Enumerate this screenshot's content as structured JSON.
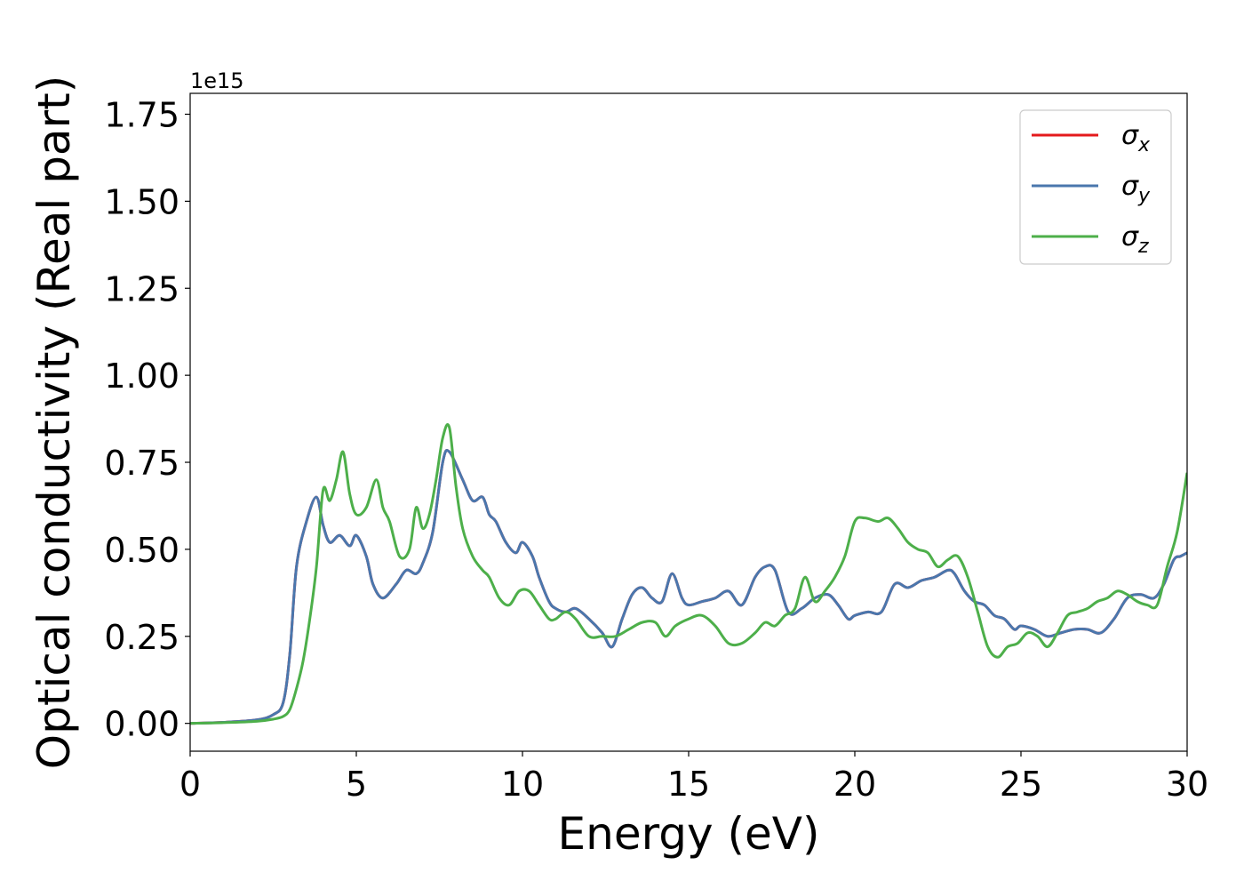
{
  "chart_data": {
    "type": "line",
    "title": "",
    "xlabel": "Energy (eV)",
    "ylabel": "Optical conductivity (Real part)",
    "y_offset_text": "1e15",
    "xlim": [
      0,
      30
    ],
    "ylim": [
      -0.08,
      1.81
    ],
    "x_ticks": [
      0,
      5,
      10,
      15,
      20,
      25,
      30
    ],
    "x_tick_labels": [
      "0",
      "5",
      "10",
      "15",
      "20",
      "25",
      "30"
    ],
    "y_ticks": [
      0.0,
      0.25,
      0.5,
      0.75,
      1.0,
      1.25,
      1.5,
      1.75
    ],
    "y_tick_labels": [
      "0.00",
      "0.25",
      "0.50",
      "0.75",
      "1.00",
      "1.25",
      "1.50",
      "1.75"
    ],
    "grid": false,
    "legend_position": "top-right",
    "series": [
      {
        "name": "σx",
        "label_base": "σ",
        "label_sub": "x",
        "color": "#e41a1c",
        "x": [
          0,
          1,
          2,
          2.5,
          2.8,
          3.0,
          3.2,
          3.5,
          3.8,
          4.0,
          4.2,
          4.5,
          4.8,
          5.0,
          5.3,
          5.5,
          5.8,
          6.2,
          6.5,
          6.8,
          7.0,
          7.3,
          7.6,
          7.8,
          8.2,
          8.5,
          8.8,
          9.0,
          9.2,
          9.5,
          9.8,
          10.0,
          10.3,
          10.5,
          10.8,
          11.0,
          11.3,
          11.6,
          12.0,
          12.4,
          12.7,
          13.0,
          13.3,
          13.6,
          13.9,
          14.2,
          14.5,
          14.8,
          15.0,
          15.4,
          15.8,
          16.2,
          16.6,
          17.0,
          17.3,
          17.6,
          18.0,
          18.4,
          18.8,
          19.2,
          19.5,
          19.8,
          20.0,
          20.4,
          20.8,
          21.2,
          21.6,
          22.0,
          22.4,
          22.8,
          23.0,
          23.3,
          23.6,
          23.9,
          24.2,
          24.5,
          24.8,
          25.0,
          25.4,
          25.8,
          26.2,
          26.6,
          27.0,
          27.4,
          27.8,
          28.2,
          28.6,
          29.0,
          29.3,
          29.6,
          29.8,
          30.0
        ],
        "y": [
          0.0,
          0.003,
          0.01,
          0.025,
          0.06,
          0.2,
          0.45,
          0.58,
          0.65,
          0.57,
          0.52,
          0.54,
          0.51,
          0.54,
          0.48,
          0.4,
          0.36,
          0.4,
          0.44,
          0.43,
          0.46,
          0.55,
          0.75,
          0.78,
          0.7,
          0.64,
          0.65,
          0.6,
          0.58,
          0.52,
          0.49,
          0.52,
          0.48,
          0.42,
          0.35,
          0.33,
          0.32,
          0.33,
          0.3,
          0.26,
          0.22,
          0.3,
          0.37,
          0.39,
          0.36,
          0.35,
          0.43,
          0.36,
          0.34,
          0.35,
          0.36,
          0.38,
          0.34,
          0.42,
          0.45,
          0.44,
          0.32,
          0.33,
          0.36,
          0.37,
          0.34,
          0.3,
          0.31,
          0.32,
          0.32,
          0.4,
          0.39,
          0.41,
          0.42,
          0.44,
          0.43,
          0.38,
          0.35,
          0.34,
          0.31,
          0.3,
          0.27,
          0.28,
          0.27,
          0.25,
          0.26,
          0.27,
          0.27,
          0.26,
          0.3,
          0.36,
          0.37,
          0.36,
          0.4,
          0.47,
          0.48,
          0.49
        ]
      },
      {
        "name": "σy",
        "label_base": "σ",
        "label_sub": "y",
        "color": "#4a77ad",
        "x": [
          0,
          1,
          2,
          2.5,
          2.8,
          3.0,
          3.2,
          3.5,
          3.8,
          4.0,
          4.2,
          4.5,
          4.8,
          5.0,
          5.3,
          5.5,
          5.8,
          6.2,
          6.5,
          6.8,
          7.0,
          7.3,
          7.6,
          7.8,
          8.2,
          8.5,
          8.8,
          9.0,
          9.2,
          9.5,
          9.8,
          10.0,
          10.3,
          10.5,
          10.8,
          11.0,
          11.3,
          11.6,
          12.0,
          12.4,
          12.7,
          13.0,
          13.3,
          13.6,
          13.9,
          14.2,
          14.5,
          14.8,
          15.0,
          15.4,
          15.8,
          16.2,
          16.6,
          17.0,
          17.3,
          17.6,
          18.0,
          18.4,
          18.8,
          19.2,
          19.5,
          19.8,
          20.0,
          20.4,
          20.8,
          21.2,
          21.6,
          22.0,
          22.4,
          22.8,
          23.0,
          23.3,
          23.6,
          23.9,
          24.2,
          24.5,
          24.8,
          25.0,
          25.4,
          25.8,
          26.2,
          26.6,
          27.0,
          27.4,
          27.8,
          28.2,
          28.6,
          29.0,
          29.3,
          29.6,
          29.8,
          30.0
        ],
        "y": [
          0.0,
          0.003,
          0.01,
          0.025,
          0.06,
          0.2,
          0.45,
          0.58,
          0.65,
          0.57,
          0.52,
          0.54,
          0.51,
          0.54,
          0.48,
          0.4,
          0.36,
          0.4,
          0.44,
          0.43,
          0.46,
          0.55,
          0.75,
          0.78,
          0.7,
          0.64,
          0.65,
          0.6,
          0.58,
          0.52,
          0.49,
          0.52,
          0.48,
          0.42,
          0.35,
          0.33,
          0.32,
          0.33,
          0.3,
          0.26,
          0.22,
          0.3,
          0.37,
          0.39,
          0.36,
          0.35,
          0.43,
          0.36,
          0.34,
          0.35,
          0.36,
          0.38,
          0.34,
          0.42,
          0.45,
          0.44,
          0.32,
          0.33,
          0.36,
          0.37,
          0.34,
          0.3,
          0.31,
          0.32,
          0.32,
          0.4,
          0.39,
          0.41,
          0.42,
          0.44,
          0.43,
          0.38,
          0.35,
          0.34,
          0.31,
          0.3,
          0.27,
          0.28,
          0.27,
          0.25,
          0.26,
          0.27,
          0.27,
          0.26,
          0.3,
          0.36,
          0.37,
          0.36,
          0.4,
          0.47,
          0.48,
          0.49
        ]
      },
      {
        "name": "σz",
        "label_base": "σ",
        "label_sub": "z",
        "color": "#4daf4a",
        "x": [
          0,
          1,
          2,
          2.5,
          2.8,
          3.0,
          3.2,
          3.4,
          3.6,
          3.8,
          4.0,
          4.2,
          4.4,
          4.6,
          4.8,
          5.0,
          5.3,
          5.6,
          5.8,
          6.0,
          6.3,
          6.6,
          6.8,
          7.0,
          7.2,
          7.4,
          7.6,
          7.8,
          8.0,
          8.2,
          8.5,
          8.8,
          9.0,
          9.3,
          9.6,
          9.9,
          10.2,
          10.5,
          10.8,
          11.0,
          11.3,
          11.6,
          12.0,
          12.4,
          12.8,
          13.2,
          13.6,
          14.0,
          14.3,
          14.6,
          15.0,
          15.4,
          15.8,
          16.2,
          16.6,
          17.0,
          17.3,
          17.6,
          17.9,
          18.2,
          18.5,
          18.8,
          19.1,
          19.4,
          19.7,
          20.0,
          20.3,
          20.7,
          21.0,
          21.3,
          21.6,
          21.9,
          22.2,
          22.5,
          22.8,
          23.1,
          23.4,
          23.7,
          24.0,
          24.3,
          24.6,
          24.9,
          25.2,
          25.5,
          25.8,
          26.1,
          26.4,
          26.7,
          27.0,
          27.3,
          27.6,
          27.9,
          28.2,
          28.5,
          28.8,
          29.1,
          29.4,
          29.7,
          30.0
        ],
        "y": [
          0.0,
          0.002,
          0.006,
          0.012,
          0.02,
          0.04,
          0.1,
          0.18,
          0.3,
          0.45,
          0.67,
          0.64,
          0.7,
          0.78,
          0.66,
          0.6,
          0.62,
          0.7,
          0.62,
          0.58,
          0.48,
          0.5,
          0.62,
          0.56,
          0.6,
          0.7,
          0.82,
          0.85,
          0.68,
          0.56,
          0.48,
          0.44,
          0.42,
          0.36,
          0.34,
          0.38,
          0.38,
          0.34,
          0.3,
          0.3,
          0.32,
          0.3,
          0.25,
          0.25,
          0.25,
          0.27,
          0.29,
          0.29,
          0.25,
          0.28,
          0.3,
          0.31,
          0.28,
          0.23,
          0.23,
          0.26,
          0.29,
          0.28,
          0.31,
          0.33,
          0.42,
          0.35,
          0.38,
          0.42,
          0.48,
          0.58,
          0.59,
          0.58,
          0.59,
          0.56,
          0.52,
          0.5,
          0.49,
          0.45,
          0.47,
          0.48,
          0.42,
          0.32,
          0.22,
          0.19,
          0.22,
          0.23,
          0.26,
          0.25,
          0.22,
          0.26,
          0.31,
          0.32,
          0.33,
          0.35,
          0.36,
          0.38,
          0.37,
          0.35,
          0.34,
          0.34,
          0.45,
          0.55,
          0.72
        ]
      }
    ]
  }
}
